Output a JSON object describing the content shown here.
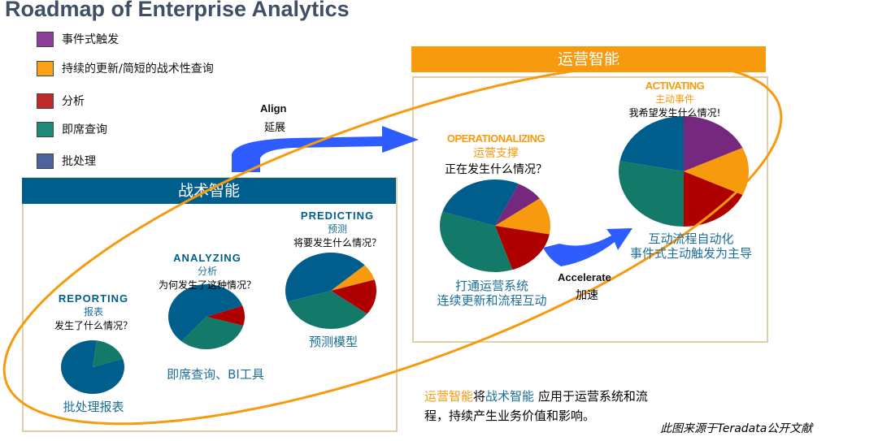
{
  "title": "Roadmap of Enterprise Analytics",
  "legend": [
    {
      "label": "事件式触发",
      "color": "#7b2a86"
    },
    {
      "label": "持续的更新/简短的战术性查询",
      "color": "#f79a0e"
    },
    {
      "label": "分析",
      "color": "#b00c0c"
    },
    {
      "label": "即席查询",
      "color": "#137a6a"
    },
    {
      "label": "批处理",
      "color": "#3d5490"
    }
  ],
  "colors": {
    "blue": "#005e8c",
    "green": "#137a6a",
    "red": "#af0000",
    "orange": "#f79a0e",
    "purple": "#76287f",
    "tactical_bar": "#005e8c",
    "operational_bar": "#f79a0e",
    "arrow": "#2f5cff",
    "ellipse": "#f79a0e"
  },
  "tactical": {
    "header": "战术智能"
  },
  "operational": {
    "header": "运营智能"
  },
  "align": {
    "en": "Align",
    "cn": "延展"
  },
  "accelerate": {
    "en": "Accelerate",
    "cn": "加速"
  },
  "stages": [
    {
      "en": "REPORTING",
      "cn": "报表",
      "question": "发生了什么情况？",
      "caption": [
        "批处理报表"
      ],
      "pie": [
        {
          "k": "blue",
          "v": 82
        },
        {
          "k": "green",
          "v": 18
        }
      ]
    },
    {
      "en": "ANALYZING",
      "cn": "分析",
      "question": "为何发生了这种情况？",
      "caption": [
        "即席查询、BI工具"
      ],
      "pie": [
        {
          "k": "red",
          "v": 10
        },
        {
          "k": "green",
          "v": 32
        },
        {
          "k": "blue",
          "v": 58
        }
      ]
    },
    {
      "en": "PREDICTING",
      "cn": "预测",
      "question": "将要发生什么情况？",
      "caption": [
        "预测模型"
      ],
      "pie": [
        {
          "k": "orange",
          "v": 7
        },
        {
          "k": "red",
          "v": 15
        },
        {
          "k": "green",
          "v": 35
        },
        {
          "k": "blue",
          "v": 43
        }
      ]
    },
    {
      "en": "OPERATIONALIZING",
      "cn": "运营支撑",
      "question": "正在发生什么情况？",
      "caption": [
        "打通运营系统",
        "连续更新和流程互动"
      ],
      "pie": [
        {
          "k": "purple",
          "v": 8
        },
        {
          "k": "orange",
          "v": 13
        },
        {
          "k": "red",
          "v": 17
        },
        {
          "k": "green",
          "v": 35
        },
        {
          "k": "blue",
          "v": 27
        }
      ]
    },
    {
      "en": "ACTIVATING",
      "cn": "主动事件",
      "question": "我希望发生什么情况!",
      "caption": [
        "互动流程自动化",
        "事件式主动触发为主导"
      ],
      "pie": [
        {
          "k": "purple",
          "v": 18
        },
        {
          "k": "orange",
          "v": 14
        },
        {
          "k": "red",
          "v": 18
        },
        {
          "k": "green",
          "v": 28
        },
        {
          "k": "blue",
          "v": 22
        }
      ]
    }
  ],
  "footer": {
    "part1": "运营智能",
    "part2": "将",
    "part3": "战术智能",
    "part4": " 应用于运营系统和流",
    "line2": "程，持续产生业务价值和影响。"
  },
  "source": "此图来源于Teradata公开文献"
}
